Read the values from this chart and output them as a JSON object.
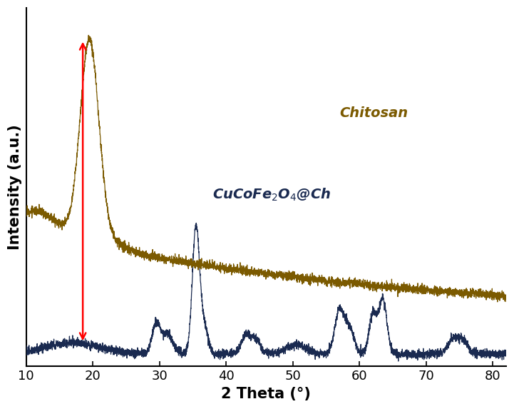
{
  "xlabel": "2 Theta (°)",
  "ylabel": "Intensity (a.u.)",
  "xlim": [
    10,
    82
  ],
  "chitosan_color": "#7B5A00",
  "composite_color": "#1a2a50",
  "background_color": "#ffffff",
  "chitosan_label": "Chitosan",
  "composite_label": "CuCoFe$_2$O$_4$@Ch",
  "arrow_color": "red",
  "tick_fontsize": 13,
  "label_fontsize": 15,
  "annotation_fontsize": 13
}
